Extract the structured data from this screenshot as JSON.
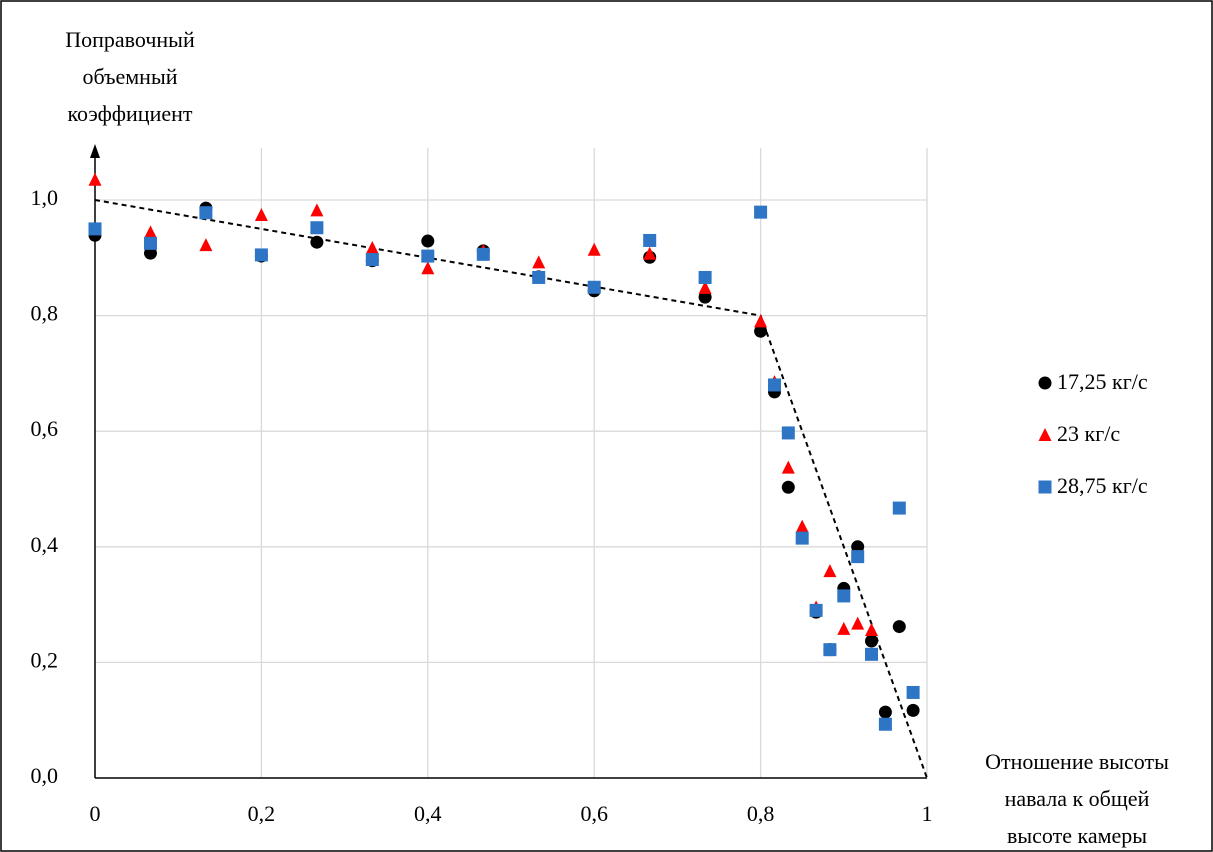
{
  "chart_data": {
    "type": "scatter",
    "ylabel": [
      "Поправочный",
      "объемный",
      "коэффициент"
    ],
    "xlabel": [
      "Отношение высоты",
      "навала к общей",
      "высоте камеры"
    ],
    "x": [
      0,
      0.0667,
      0.1333,
      0.2,
      0.2667,
      0.3333,
      0.4,
      0.4667,
      0.5333,
      0.6,
      0.6667,
      0.7333,
      0.8,
      0.8167,
      0.8333,
      0.85,
      0.8667,
      0.8833,
      0.9,
      0.9167,
      0.9333,
      0.95,
      0.9667,
      0.9833
    ],
    "series": [
      {
        "name": "17,25 кг/с",
        "color": "#000000",
        "marker": "circle",
        "values": [
          0.939,
          0.908,
          0.986,
          0.903,
          0.927,
          0.895,
          0.929,
          0.912,
          0.867,
          0.843,
          0.901,
          0.832,
          0.773,
          0.668,
          0.503,
          null,
          0.287,
          0.222,
          0.328,
          0.4,
          0.237,
          0.114,
          0.262,
          0.117
        ]
      },
      {
        "name": "23 кг/с",
        "color": "#ff0000",
        "marker": "triangle",
        "values": [
          1.035,
          0.944,
          0.922,
          0.974,
          0.982,
          0.917,
          0.882,
          0.912,
          0.892,
          0.914,
          0.907,
          0.848,
          0.79,
          0.685,
          0.537,
          0.435,
          0.295,
          0.358,
          0.258,
          0.267,
          0.256,
          null,
          null,
          null
        ]
      },
      {
        "name": "28,75 кг/с",
        "color": "#2e75c6",
        "marker": "square",
        "values": [
          0.95,
          0.925,
          0.978,
          0.905,
          0.952,
          0.897,
          0.903,
          0.906,
          0.866,
          0.849,
          0.93,
          0.866,
          0.979,
          0.68,
          0.597,
          0.415,
          0.29,
          0.222,
          0.315,
          0.383,
          0.214,
          0.093,
          0.467,
          0.148
        ]
      }
    ],
    "trend_line": {
      "x": [
        0,
        0.8,
        1
      ],
      "y": [
        1,
        0.8,
        0
      ]
    },
    "xlim": [
      0,
      1
    ],
    "xticks": [
      0,
      {
        "value": 0.2,
        "label": "0,2"
      },
      {
        "value": 0.4,
        "label": "0,4"
      },
      {
        "value": 0.6,
        "label": "0,6"
      },
      {
        "value": 0.8,
        "label": "0,8"
      },
      1
    ],
    "ylim": [
      0,
      1
    ],
    "yticks": [
      {
        "value": 0,
        "label": "0,0"
      },
      {
        "value": 0.2,
        "label": "0,2"
      },
      {
        "value": 0.4,
        "label": "0,4"
      },
      {
        "value": 0.6,
        "label": "0,6"
      },
      {
        "value": 0.8,
        "label": "0,8"
      },
      {
        "value": 1,
        "label": "1,0"
      }
    ],
    "grid": true,
    "legend": "right"
  }
}
